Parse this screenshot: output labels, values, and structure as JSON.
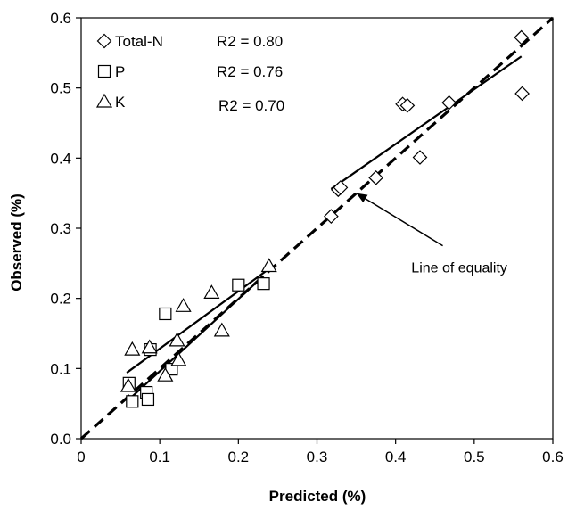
{
  "chart_data": {
    "type": "scatter",
    "title": "",
    "xlabel": "Predicted (%)",
    "ylabel": "Observed (%)",
    "xlim": [
      0,
      0.6
    ],
    "ylim": [
      0,
      0.6
    ],
    "x_ticks": [
      "0",
      "0.1",
      "0.2",
      "0.3",
      "0.4",
      "0.5",
      "0.6"
    ],
    "y_ticks": [
      "0.0",
      "0.1",
      "0.2",
      "0.3",
      "0.4",
      "0.5",
      "0.6"
    ],
    "grid": false,
    "legend_position": "top-left",
    "series": [
      {
        "name": "Total-N",
        "marker": "diamond",
        "r2_label": "R2 = 0.80",
        "points": [
          [
            0.318,
            0.317
          ],
          [
            0.327,
            0.355
          ],
          [
            0.33,
            0.358
          ],
          [
            0.375,
            0.372
          ],
          [
            0.409,
            0.477
          ],
          [
            0.415,
            0.475
          ],
          [
            0.431,
            0.401
          ],
          [
            0.468,
            0.479
          ],
          [
            0.56,
            0.572
          ],
          [
            0.561,
            0.492
          ]
        ],
        "fit": [
          [
            0.318,
            0.356
          ],
          [
            0.56,
            0.545
          ]
        ]
      },
      {
        "name": "P",
        "marker": "square",
        "r2_label": "R2 = 0.76",
        "points": [
          [
            0.061,
            0.079
          ],
          [
            0.065,
            0.053
          ],
          [
            0.083,
            0.066
          ],
          [
            0.085,
            0.056
          ],
          [
            0.088,
            0.127
          ],
          [
            0.107,
            0.178
          ],
          [
            0.115,
            0.099
          ],
          [
            0.2,
            0.219
          ],
          [
            0.232,
            0.221
          ]
        ],
        "fit": [
          [
            0.06,
            0.055
          ],
          [
            0.232,
            0.232
          ]
        ]
      },
      {
        "name": "K",
        "marker": "triangle",
        "r2_label": "R2 = 0.70",
        "points": [
          [
            0.06,
            0.075
          ],
          [
            0.065,
            0.127
          ],
          [
            0.087,
            0.13
          ],
          [
            0.107,
            0.09
          ],
          [
            0.122,
            0.14
          ],
          [
            0.124,
            0.112
          ],
          [
            0.13,
            0.189
          ],
          [
            0.166,
            0.208
          ],
          [
            0.179,
            0.154
          ],
          [
            0.239,
            0.246
          ]
        ],
        "fit": [
          [
            0.058,
            0.094
          ],
          [
            0.24,
            0.243
          ]
        ]
      }
    ],
    "reference_line": {
      "style": "dashed",
      "from": [
        0,
        0
      ],
      "to": [
        0.6,
        0.6
      ]
    },
    "annotation": {
      "text": "Line of equality",
      "anchor_text": [
        0.42,
        0.245
      ],
      "arrow_tip": [
        0.35,
        0.35
      ],
      "arrow_tail": [
        0.46,
        0.275
      ]
    }
  }
}
